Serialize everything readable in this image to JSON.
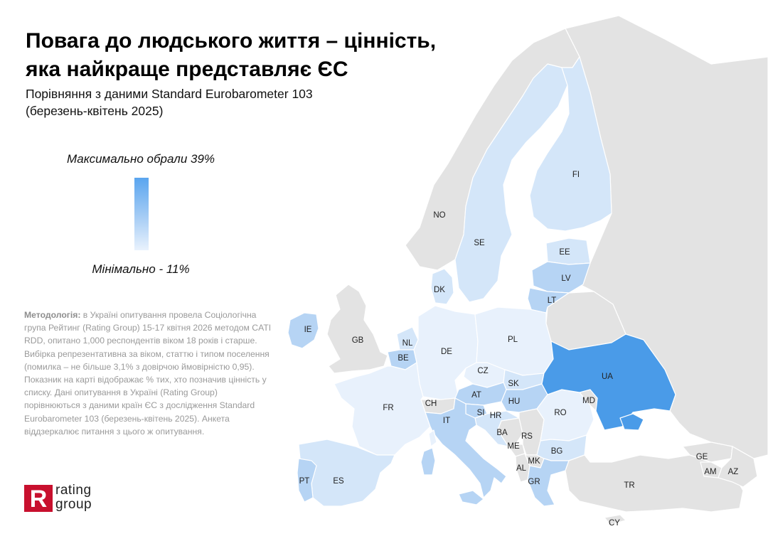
{
  "title": {
    "line1": "Повага до людського життя – цінність,",
    "line2": "яка найкраще представляє ЄС"
  },
  "subtitle": {
    "line1": "Порівняння з даними Standard Eurobarometer 103",
    "line2": "(березень-квітень 2025)"
  },
  "legend": {
    "max_label": "Максимально обрали 39%",
    "min_label": "Мінімально - 11%",
    "max_value": 39,
    "min_value": 11,
    "color_max": "#5aa5ef",
    "color_min": "#e9f2fd"
  },
  "methodology": {
    "label": "Методологія:",
    "text": " в Україні опитування провела Соціологічна група Рейтинг (Rating Group) 15-17 квітня 2026 методом CATI RDD, опитано 1,000 респондентів віком 18 років і старше. Вибірка репрезентативна за віком, статтю і типом поселення (помилка – не більше 3,1% з довірчою ймовірністю 0,95). Показник на карті відображає % тих, хто позначив цінність у списку. Дані опитування в Україні (Rating Group) порівнюються з даними країн ЄС з дослідження Standard Eurobarometer 103 (березень-квітень 2025). Анкета віддзеркалює питання з цього ж опитування."
  },
  "logo": {
    "mark": "R",
    "line1": "rating",
    "line2": "group",
    "color": "#c8102e"
  },
  "colors": {
    "ocean": "#ffffff",
    "non_eu": "#e3e3e3",
    "border": "#ffffff",
    "ua": "#4a9be8"
  },
  "countries": [
    {
      "code": "IE",
      "label": "IE",
      "shade": "mid"
    },
    {
      "code": "GB",
      "label": "GB",
      "shade": "grey"
    },
    {
      "code": "NO",
      "label": "NO",
      "shade": "grey"
    },
    {
      "code": "SE",
      "label": "SE",
      "shade": "light"
    },
    {
      "code": "FI",
      "label": "FI",
      "shade": "light"
    },
    {
      "code": "EE",
      "label": "EE",
      "shade": "light"
    },
    {
      "code": "LV",
      "label": "LV",
      "shade": "mid"
    },
    {
      "code": "LT",
      "label": "LT",
      "shade": "mid"
    },
    {
      "code": "DK",
      "label": "DK",
      "shade": "light"
    },
    {
      "code": "NL",
      "label": "NL",
      "shade": "light"
    },
    {
      "code": "BE",
      "label": "BE",
      "shade": "mid"
    },
    {
      "code": "DE",
      "label": "DE",
      "shade": "pale"
    },
    {
      "code": "PL",
      "label": "PL",
      "shade": "pale"
    },
    {
      "code": "CZ",
      "label": "CZ",
      "shade": "pale"
    },
    {
      "code": "SK",
      "label": "SK",
      "shade": "light"
    },
    {
      "code": "AT",
      "label": "AT",
      "shade": "mid"
    },
    {
      "code": "HU",
      "label": "HU",
      "shade": "mid"
    },
    {
      "code": "CH",
      "label": "CH",
      "shade": "grey"
    },
    {
      "code": "FR",
      "label": "FR",
      "shade": "pale"
    },
    {
      "code": "SI",
      "label": "SI",
      "shade": "mid"
    },
    {
      "code": "HR",
      "label": "HR",
      "shade": "light"
    },
    {
      "code": "IT",
      "label": "IT",
      "shade": "mid"
    },
    {
      "code": "BA",
      "label": "BA",
      "shade": "grey"
    },
    {
      "code": "RS",
      "label": "RS",
      "shade": "grey"
    },
    {
      "code": "ME",
      "label": "ME",
      "shade": "grey"
    },
    {
      "code": "AL",
      "label": "AL",
      "shade": "grey"
    },
    {
      "code": "MK",
      "label": "MK",
      "shade": "grey"
    },
    {
      "code": "BG",
      "label": "BG",
      "shade": "light"
    },
    {
      "code": "RO",
      "label": "RO",
      "shade": "pale"
    },
    {
      "code": "MD",
      "label": "MD",
      "shade": "grey"
    },
    {
      "code": "UA",
      "label": "UA",
      "shade": "ua"
    },
    {
      "code": "GR",
      "label": "GR",
      "shade": "mid"
    },
    {
      "code": "TR",
      "label": "TR",
      "shade": "grey"
    },
    {
      "code": "GE",
      "label": "GE",
      "shade": "grey"
    },
    {
      "code": "AM",
      "label": "AM",
      "shade": "grey"
    },
    {
      "code": "AZ",
      "label": "AZ",
      "shade": "grey"
    },
    {
      "code": "CY",
      "label": "CY",
      "shade": "grey"
    },
    {
      "code": "PT",
      "label": "PT",
      "shade": "mid"
    },
    {
      "code": "ES",
      "label": "ES",
      "shade": "light"
    }
  ],
  "shade_colors": {
    "grey": "#e3e3e3",
    "pale": "#e8f1fc",
    "light": "#d4e6f9",
    "mid": "#b6d4f4",
    "ua": "#4a9be8"
  }
}
